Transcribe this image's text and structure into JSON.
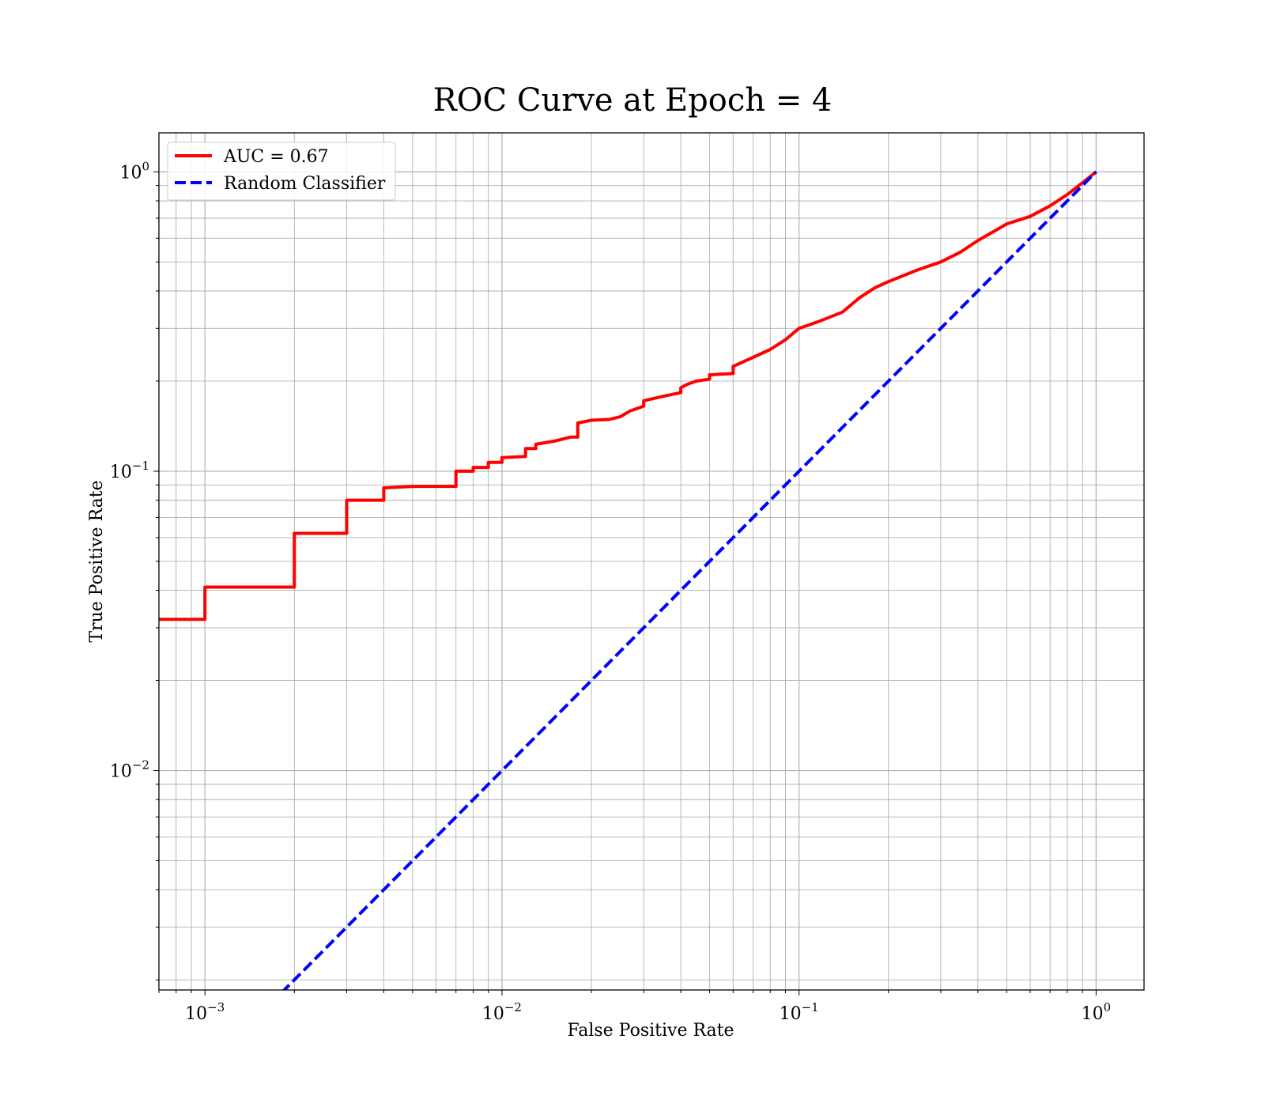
{
  "chart_data": {
    "type": "line",
    "title": "ROC Curve at Epoch = 4",
    "xlabel": "False Positive Rate",
    "ylabel": "True Positive Rate",
    "xscale": "log",
    "yscale": "log",
    "xlim": [
      0.0007,
      1.45
    ],
    "ylim": [
      0.00185,
      1.35
    ],
    "grid": "both (major and minor)",
    "legend_position": "top-left",
    "x_ticks": [
      {
        "value": 0.001,
        "base": "10",
        "exp": "−3"
      },
      {
        "value": 0.01,
        "base": "10",
        "exp": "−2"
      },
      {
        "value": 0.1,
        "base": "10",
        "exp": "−1"
      },
      {
        "value": 1,
        "base": "10",
        "exp": "0"
      }
    ],
    "y_ticks": [
      {
        "value": 0.01,
        "base": "10",
        "exp": "−2"
      },
      {
        "value": 0.1,
        "base": "10",
        "exp": "−1"
      },
      {
        "value": 1,
        "base": "10",
        "exp": "0"
      }
    ],
    "series": [
      {
        "name": "AUC = 0.67",
        "color": "#ff0000",
        "style": "solid",
        "points": [
          [
            0.0007,
            0.032
          ],
          [
            0.001,
            0.032
          ],
          [
            0.001,
            0.041
          ],
          [
            0.002,
            0.041
          ],
          [
            0.002,
            0.062
          ],
          [
            0.003,
            0.062
          ],
          [
            0.003,
            0.08
          ],
          [
            0.004,
            0.08
          ],
          [
            0.004,
            0.088
          ],
          [
            0.005,
            0.089
          ],
          [
            0.007,
            0.089
          ],
          [
            0.007,
            0.1
          ],
          [
            0.008,
            0.1
          ],
          [
            0.008,
            0.103
          ],
          [
            0.009,
            0.103
          ],
          [
            0.009,
            0.107
          ],
          [
            0.01,
            0.107
          ],
          [
            0.01,
            0.111
          ],
          [
            0.012,
            0.112
          ],
          [
            0.012,
            0.119
          ],
          [
            0.013,
            0.119
          ],
          [
            0.013,
            0.123
          ],
          [
            0.015,
            0.126
          ],
          [
            0.017,
            0.13
          ],
          [
            0.018,
            0.13
          ],
          [
            0.018,
            0.145
          ],
          [
            0.02,
            0.148
          ],
          [
            0.023,
            0.149
          ],
          [
            0.025,
            0.152
          ],
          [
            0.027,
            0.159
          ],
          [
            0.03,
            0.165
          ],
          [
            0.03,
            0.172
          ],
          [
            0.035,
            0.178
          ],
          [
            0.04,
            0.183
          ],
          [
            0.04,
            0.19
          ],
          [
            0.042,
            0.195
          ],
          [
            0.045,
            0.2
          ],
          [
            0.05,
            0.203
          ],
          [
            0.05,
            0.21
          ],
          [
            0.06,
            0.212
          ],
          [
            0.06,
            0.224
          ],
          [
            0.07,
            0.24
          ],
          [
            0.08,
            0.255
          ],
          [
            0.09,
            0.275
          ],
          [
            0.1,
            0.3
          ],
          [
            0.11,
            0.31
          ],
          [
            0.12,
            0.32
          ],
          [
            0.14,
            0.34
          ],
          [
            0.16,
            0.38
          ],
          [
            0.18,
            0.41
          ],
          [
            0.2,
            0.43
          ],
          [
            0.25,
            0.47
          ],
          [
            0.3,
            0.5
          ],
          [
            0.35,
            0.54
          ],
          [
            0.4,
            0.59
          ],
          [
            0.45,
            0.63
          ],
          [
            0.5,
            0.67
          ],
          [
            0.6,
            0.71
          ],
          [
            0.7,
            0.77
          ],
          [
            0.8,
            0.84
          ],
          [
            0.9,
            0.92
          ],
          [
            1.0,
            1.0
          ]
        ]
      },
      {
        "name": "Random Classifier",
        "color": "#0000ff",
        "style": "dashed",
        "points": [
          [
            0.0007,
            0.0007
          ],
          [
            1.0,
            1.0
          ]
        ]
      }
    ]
  }
}
